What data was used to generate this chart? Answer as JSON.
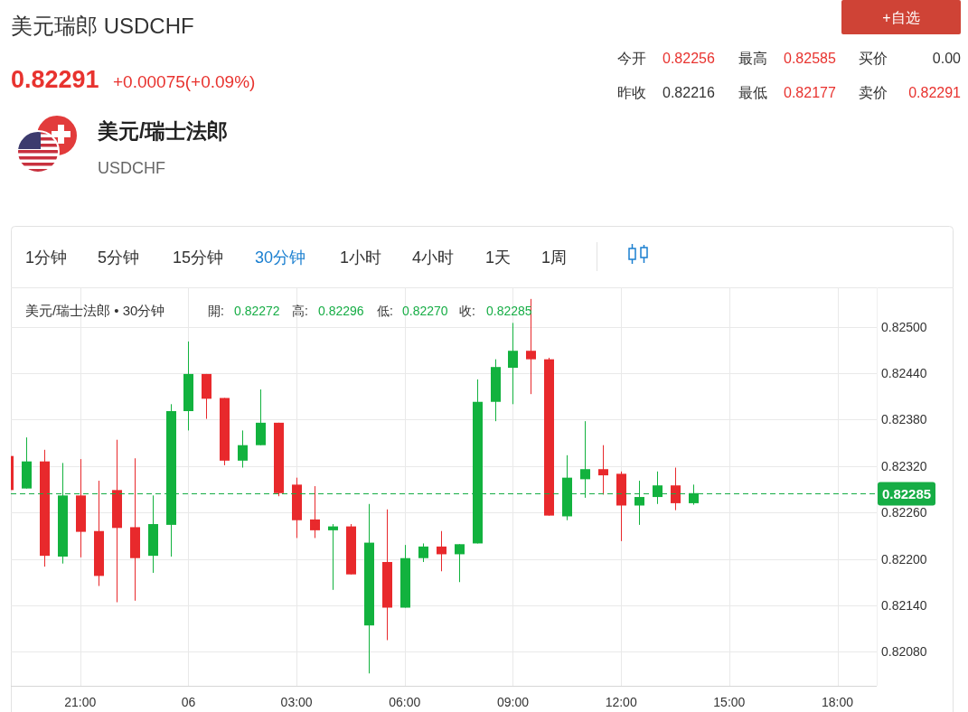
{
  "chart_data": {
    "type": "candlestick",
    "title": "美元瑞郎 USDCHF",
    "annotations": [
      "0.82291",
      "+0.00075(+0.09%)",
      "今开",
      "0.82256",
      "最高",
      "0.82585",
      "买价",
      "0.00",
      "昨收",
      "0.82216",
      "最低",
      "0.82177",
      "卖价",
      "0.82291",
      "+自选",
      "美元/瑞士法郎",
      "USDCHF",
      "1分钟",
      "5分钟",
      "15分钟",
      "30分钟",
      "1小时",
      "4小时",
      "1天",
      "1周",
      "美元/瑞士法郎 • 30分钟",
      "開:",
      "0.82272",
      "高:",
      "0.82296",
      "低:",
      "0.82270",
      "收:",
      "0.82285"
    ],
    "categories": [
      null,
      null,
      null,
      null,
      "21:00",
      null,
      null,
      null,
      null,
      null,
      "06",
      null,
      null,
      null,
      null,
      null,
      "03:00",
      null,
      null,
      null,
      null,
      null,
      "06:00",
      null,
      null,
      null,
      null,
      null,
      "09:00",
      null,
      null,
      null,
      null,
      null,
      "12:00",
      null,
      null,
      null,
      null,
      null,
      "15:00",
      null,
      null,
      null,
      null,
      null,
      "18:00",
      null
    ],
    "ohlc": [
      [
        0.82333,
        0.82333,
        0.82289,
        0.82289
      ],
      [
        0.82291,
        0.82357,
        0.82291,
        0.82326
      ],
      [
        0.82326,
        0.82341,
        0.8219,
        0.82204
      ],
      [
        0.82203,
        0.82324,
        0.82194,
        0.82282
      ],
      [
        0.82282,
        0.82329,
        0.82202,
        0.82235
      ],
      [
        0.82236,
        0.82301,
        0.82165,
        0.82178
      ],
      [
        0.82289,
        0.82354,
        0.82144,
        0.8224
      ],
      [
        0.82241,
        0.8233,
        0.82146,
        0.82201
      ],
      [
        0.82204,
        0.82282,
        0.82182,
        0.82245
      ],
      [
        0.82244,
        0.824,
        0.82203,
        0.82391
      ],
      [
        0.82391,
        0.82481,
        0.82366,
        0.82439
      ],
      [
        0.82439,
        0.82439,
        0.82381,
        0.82407
      ],
      [
        0.82408,
        0.82408,
        0.82321,
        0.82327
      ],
      [
        0.82327,
        0.82366,
        0.82318,
        0.82347
      ],
      [
        0.82347,
        0.82419,
        0.82347,
        0.82376
      ],
      [
        0.82376,
        0.82376,
        0.82281,
        0.82285
      ],
      [
        0.82296,
        0.82305,
        0.82227,
        0.8225
      ],
      [
        0.82251,
        0.82294,
        0.82227,
        0.82237
      ],
      [
        0.82237,
        0.82245,
        0.8216,
        0.82242
      ],
      [
        0.82242,
        0.82245,
        0.8218,
        0.8218
      ],
      [
        0.82114,
        0.82271,
        0.82052,
        0.82221
      ],
      [
        0.82196,
        0.82264,
        0.82095,
        0.82137
      ],
      [
        0.82137,
        0.82218,
        0.82137,
        0.82201
      ],
      [
        0.82201,
        0.8222,
        0.82196,
        0.82216
      ],
      [
        0.82216,
        0.82236,
        0.82184,
        0.82206
      ],
      [
        0.82206,
        0.82219,
        0.8217,
        0.82219
      ],
      [
        0.8222,
        0.82432,
        0.8222,
        0.82403
      ],
      [
        0.82403,
        0.82458,
        0.82378,
        0.82448
      ],
      [
        0.82447,
        0.82505,
        0.824,
        0.82469
      ],
      [
        0.82469,
        0.82536,
        0.82413,
        0.82458
      ],
      [
        0.82458,
        0.8246,
        0.82256,
        0.82256
      ],
      [
        0.82255,
        0.82334,
        0.8225,
        0.82305
      ],
      [
        0.82303,
        0.82378,
        0.82279,
        0.82316
      ],
      [
        0.82316,
        0.82347,
        0.82283,
        0.82308
      ],
      [
        0.8231,
        0.82313,
        0.82223,
        0.82269
      ],
      [
        0.82269,
        0.82301,
        0.82244,
        0.8228
      ],
      [
        0.8228,
        0.82313,
        0.82271,
        0.82295
      ],
      [
        0.82295,
        0.82318,
        0.82263,
        0.82272
      ],
      [
        0.82272,
        0.82296,
        0.8227,
        0.82285
      ],
      null,
      null,
      null,
      null,
      null,
      null,
      null,
      null,
      null
    ],
    "colors": [
      "#e8292c",
      "#12b23e",
      "#e8292c",
      "#12b23e",
      "#e8292c",
      "#e8292c",
      "#e8292c",
      "#e8292c",
      "#12b23e",
      "#12b23e",
      "#12b23e",
      "#e8292c",
      "#e8292c",
      "#12b23e",
      "#12b23e",
      "#e8292c",
      "#e8292c",
      "#e8292c",
      "#12b23e",
      "#e8292c",
      "#12b23e",
      "#e8292c",
      "#12b23e",
      "#12b23e",
      "#e8292c",
      "#12b23e",
      "#12b23e",
      "#12b23e",
      "#12b23e",
      "#e8292c",
      "#e8292c",
      "#12b23e",
      "#12b23e",
      "#e8292c",
      "#e8292c",
      "#12b23e",
      "#12b23e",
      "#e8292c",
      "#12b23e",
      null,
      null,
      null,
      null,
      null,
      null,
      null,
      null,
      null
    ],
    "ylim": [
      0.82036,
      0.82551
    ],
    "yticks": [
      {
        "value": 0.8208,
        "label": "0.82080"
      },
      {
        "value": 0.8214,
        "label": "0.82140"
      },
      {
        "value": 0.822,
        "label": "0.82200"
      },
      {
        "value": 0.8226,
        "label": "0.82260"
      },
      {
        "value": 0.8232,
        "label": "0.82320"
      },
      {
        "value": 0.8238,
        "label": "0.82380"
      },
      {
        "value": 0.8244,
        "label": "0.82440"
      },
      {
        "value": 0.825,
        "label": "0.82500"
      }
    ],
    "ref_lines": [
      {
        "axis": "y",
        "value": 0.82285,
        "label": "0.82285",
        "color": "#16ad45",
        "line_style": "dashed"
      }
    ],
    "grid": true
  }
}
